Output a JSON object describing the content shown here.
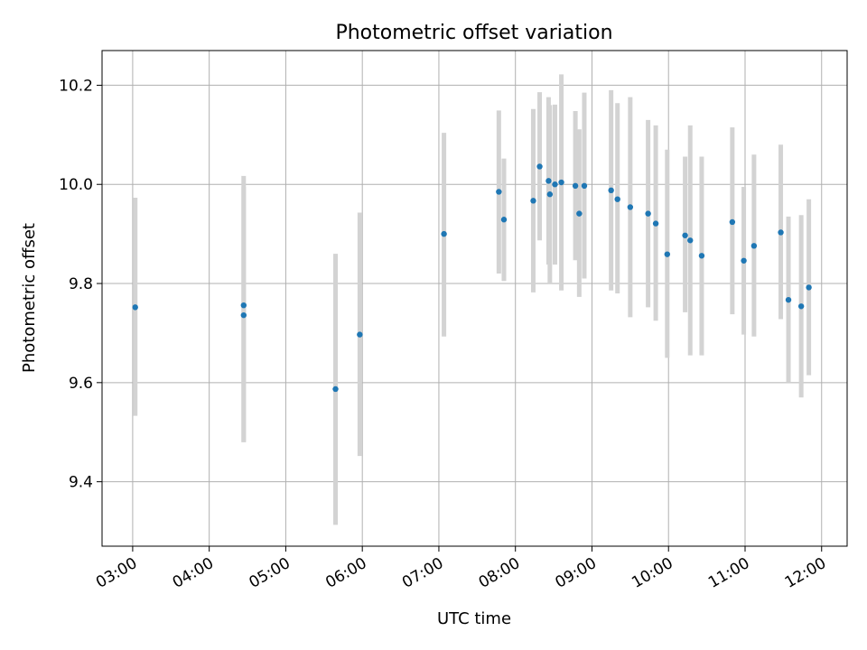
{
  "chart_data": {
    "type": "scatter",
    "title": "Photometric offset variation",
    "xlabel": "UTC time",
    "ylabel": "Photometric offset",
    "x_ticks": [
      "03:00",
      "04:00",
      "05:00",
      "06:00",
      "07:00",
      "08:00",
      "09:00",
      "10:00",
      "11:00",
      "12:00"
    ],
    "y_ticks": [
      "9.4",
      "9.6",
      "9.8",
      "10.0",
      "10.2"
    ],
    "xlim": [
      "02:36",
      "12:20"
    ],
    "ylim": [
      9.27,
      10.27
    ],
    "grid": true,
    "colors": {
      "point": "#1f77b4",
      "errorbar": "#d3d3d3",
      "grid": "#b0b0b0"
    },
    "series": [
      {
        "points": [
          {
            "t": "03:02",
            "y": 9.752,
            "lo": 9.533,
            "hi": 9.973
          },
          {
            "t": "04:27",
            "y": 9.756,
            "lo": 9.48,
            "hi": 10.017
          },
          {
            "t": "04:27",
            "y": 9.736,
            "lo": 9.48,
            "hi": 9.995
          },
          {
            "t": "05:39",
            "y": 9.587,
            "lo": 9.313,
            "hi": 9.86
          },
          {
            "t": "05:58",
            "y": 9.697,
            "lo": 9.452,
            "hi": 9.943
          },
          {
            "t": "07:04",
            "y": 9.9,
            "lo": 9.693,
            "hi": 10.104
          },
          {
            "t": "07:47",
            "y": 9.985,
            "lo": 9.82,
            "hi": 10.149
          },
          {
            "t": "07:51",
            "y": 9.929,
            "lo": 9.805,
            "hi": 10.052
          },
          {
            "t": "08:14",
            "y": 9.967,
            "lo": 9.782,
            "hi": 10.152
          },
          {
            "t": "08:19",
            "y": 10.036,
            "lo": 9.887,
            "hi": 10.186
          },
          {
            "t": "08:26",
            "y": 10.007,
            "lo": 9.838,
            "hi": 10.176
          },
          {
            "t": "08:27",
            "y": 9.98,
            "lo": 9.8,
            "hi": 10.16
          },
          {
            "t": "08:31",
            "y": 10.0,
            "lo": 9.838,
            "hi": 10.161
          },
          {
            "t": "08:36",
            "y": 10.004,
            "lo": 9.786,
            "hi": 10.222
          },
          {
            "t": "08:47",
            "y": 9.997,
            "lo": 9.847,
            "hi": 10.148
          },
          {
            "t": "08:50",
            "y": 9.941,
            "lo": 9.773,
            "hi": 10.111
          },
          {
            "t": "08:54",
            "y": 9.997,
            "lo": 9.81,
            "hi": 10.185
          },
          {
            "t": "09:15",
            "y": 9.988,
            "lo": 9.786,
            "hi": 10.19
          },
          {
            "t": "09:20",
            "y": 9.97,
            "lo": 9.78,
            "hi": 10.164
          },
          {
            "t": "09:30",
            "y": 9.954,
            "lo": 9.732,
            "hi": 10.176
          },
          {
            "t": "09:44",
            "y": 9.941,
            "lo": 9.752,
            "hi": 10.13
          },
          {
            "t": "09:50",
            "y": 9.921,
            "lo": 9.725,
            "hi": 10.119
          },
          {
            "t": "09:59",
            "y": 9.859,
            "lo": 9.65,
            "hi": 10.07
          },
          {
            "t": "10:13",
            "y": 9.897,
            "lo": 9.742,
            "hi": 10.056
          },
          {
            "t": "10:17",
            "y": 9.887,
            "lo": 9.655,
            "hi": 10.119
          },
          {
            "t": "10:26",
            "y": 9.856,
            "lo": 9.655,
            "hi": 10.056
          },
          {
            "t": "10:50",
            "y": 9.924,
            "lo": 9.738,
            "hi": 10.115
          },
          {
            "t": "10:59",
            "y": 9.846,
            "lo": 9.697,
            "hi": 9.995
          },
          {
            "t": "11:07",
            "y": 9.876,
            "lo": 9.693,
            "hi": 10.06
          },
          {
            "t": "11:28",
            "y": 9.903,
            "lo": 9.728,
            "hi": 10.08
          },
          {
            "t": "11:34",
            "y": 9.767,
            "lo": 9.6,
            "hi": 9.935
          },
          {
            "t": "11:44",
            "y": 9.754,
            "lo": 9.57,
            "hi": 9.938
          },
          {
            "t": "11:50",
            "y": 9.792,
            "lo": 9.615,
            "hi": 9.97
          }
        ]
      }
    ]
  }
}
